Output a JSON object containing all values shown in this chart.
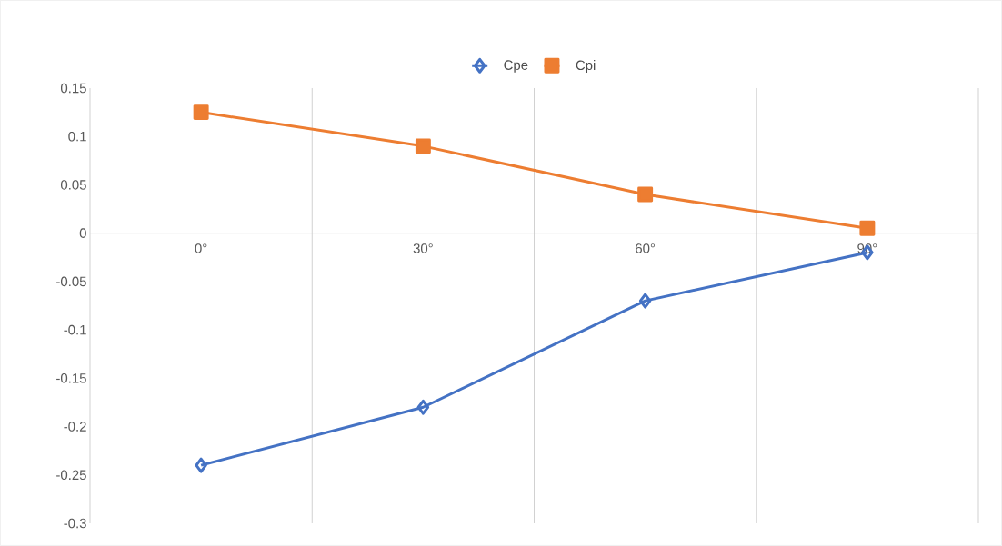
{
  "chart_data": {
    "type": "line",
    "categories": [
      "0°",
      "30°",
      "60°",
      "90°"
    ],
    "series": [
      {
        "name": "Cpe",
        "color": "#4472c4",
        "marker": "diamond",
        "values": [
          -0.24,
          -0.18,
          -0.07,
          -0.02
        ]
      },
      {
        "name": "Cpi",
        "color": "#ed7d31",
        "marker": "square",
        "values": [
          0.125,
          0.09,
          0.04,
          0.005
        ]
      }
    ],
    "ylim": [
      -0.3,
      0.15
    ],
    "yticks": [
      -0.3,
      -0.25,
      -0.2,
      -0.15,
      -0.1,
      -0.05,
      0,
      0.05,
      0.1,
      0.15
    ],
    "grid": "x",
    "legend": "top",
    "line_style": "solid"
  }
}
